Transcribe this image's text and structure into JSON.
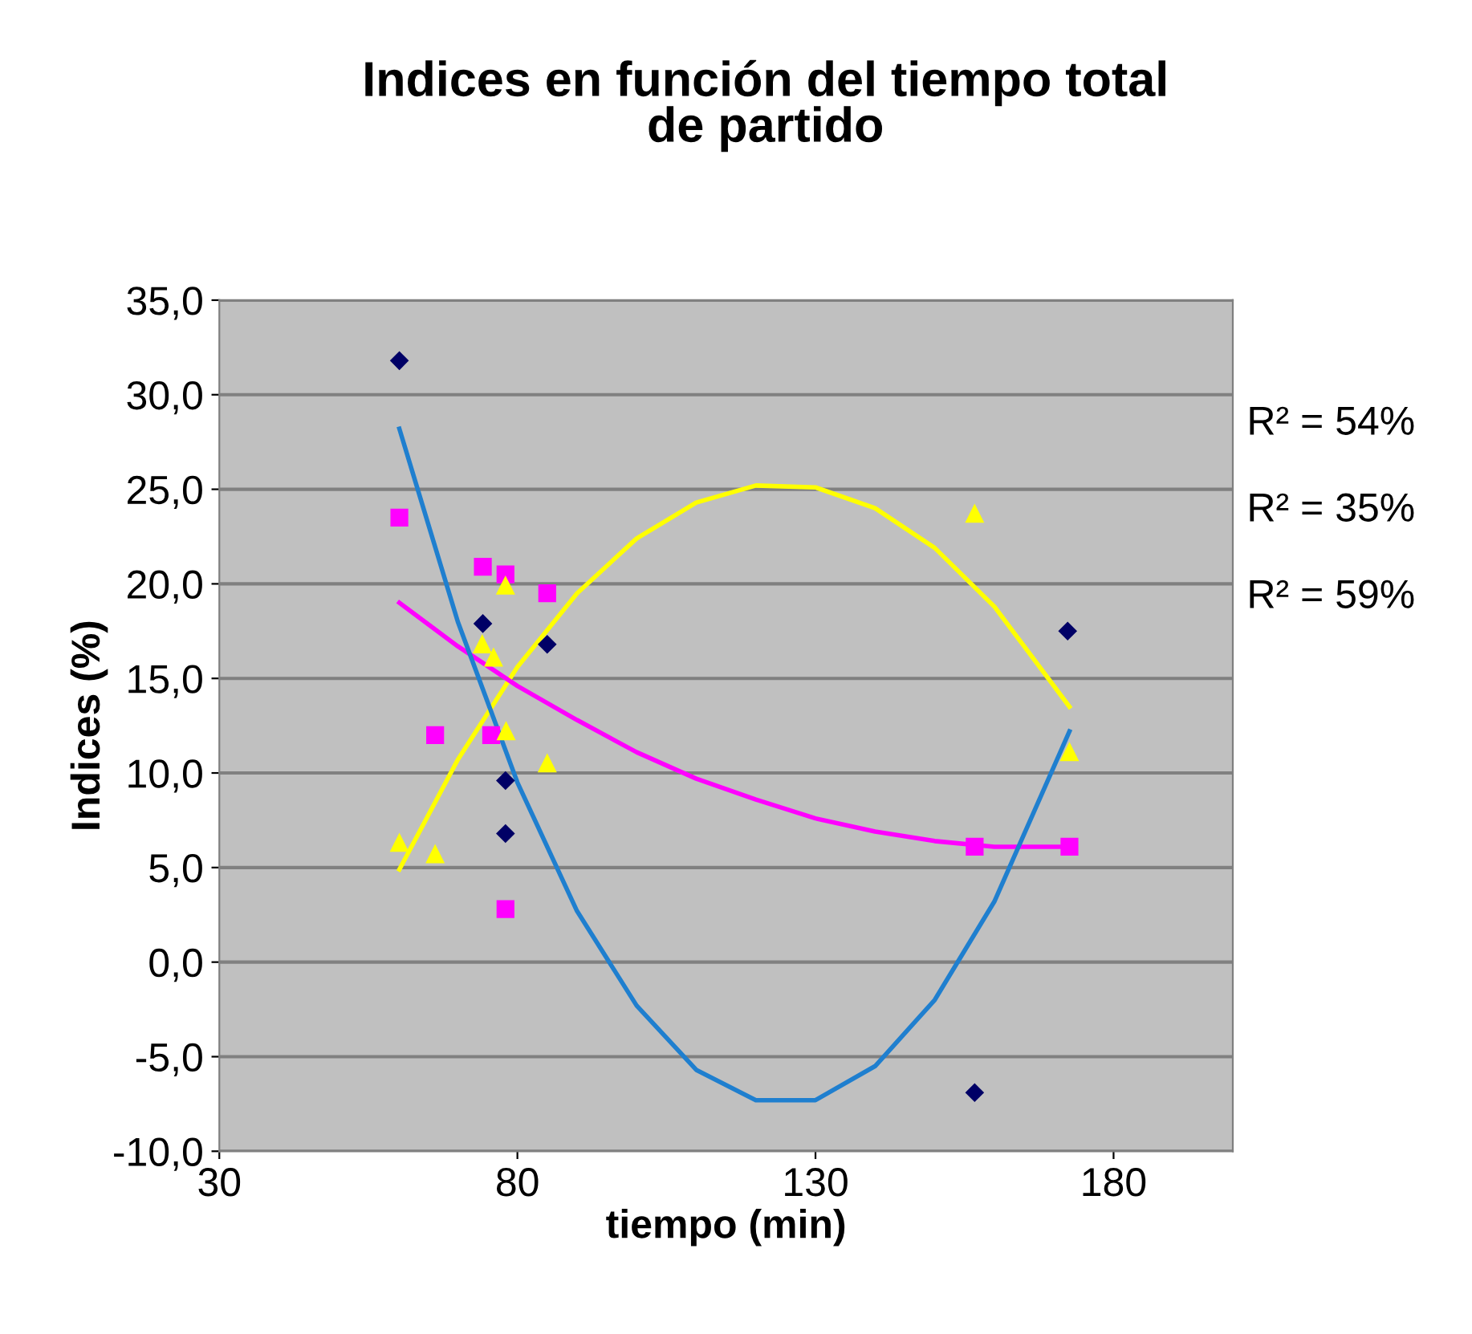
{
  "chart_data": {
    "type": "scatter",
    "title": "Indices en función del tiempo total\nde partido",
    "xlabel": "tiempo (min)",
    "ylabel": "Indices (%)",
    "xlim": [
      30,
      200
    ],
    "xticks": [
      30,
      80,
      130,
      180
    ],
    "ylim": [
      -10,
      35
    ],
    "yticks": [
      {
        "value": -10,
        "label": "-10,0"
      },
      {
        "value": -5,
        "label": "-5,0"
      },
      {
        "value": 0,
        "label": "0,0"
      },
      {
        "value": 5,
        "label": "5,0"
      },
      {
        "value": 10,
        "label": "10,0"
      },
      {
        "value": 15,
        "label": "15,0"
      },
      {
        "value": 20,
        "label": "20,0"
      },
      {
        "value": 25,
        "label": "25,0"
      },
      {
        "value": 30,
        "label": "30,0"
      },
      {
        "value": 35,
        "label": "35,0"
      }
    ],
    "grid": "y",
    "legend": false,
    "series": [
      {
        "marker": "diamond",
        "color": "#000066",
        "x": [
          60.2,
          74.2,
          85.0,
          78.0,
          78.0,
          156.7,
          172.3
        ],
        "values": [
          31.8,
          17.9,
          16.8,
          9.6,
          6.8,
          -6.9,
          17.5
        ]
      },
      {
        "marker": "square",
        "color": "#ff00ff",
        "x": [
          60.2,
          74.2,
          78.0,
          85.0,
          66.2,
          75.6,
          78.0,
          156.7,
          172.6
        ],
        "values": [
          23.5,
          20.9,
          20.5,
          19.5,
          12.0,
          12.0,
          2.8,
          6.1,
          6.1
        ]
      },
      {
        "marker": "triangle",
        "color": "#ffff00",
        "x": [
          78.0,
          74.1,
          76.0,
          78.1,
          85.0,
          60.2,
          66.2,
          156.7,
          172.6
        ],
        "values": [
          19.9,
          16.8,
          16.1,
          12.2,
          10.5,
          6.3,
          5.7,
          23.7,
          11.1
        ]
      },
      {
        "type": "line",
        "marker": "none",
        "color": "#ffff00",
        "x": [
          60.2,
          70,
          80,
          90,
          100,
          110,
          120,
          130,
          140,
          150,
          160,
          172.6
        ],
        "values": [
          4.9,
          10.7,
          15.6,
          19.5,
          22.4,
          24.3,
          25.2,
          25.1,
          24.0,
          21.9,
          18.8,
          13.5
        ]
      },
      {
        "type": "line",
        "marker": "none",
        "color": "#ff00ff",
        "x": [
          60.2,
          70,
          80,
          90,
          100,
          110,
          120,
          130,
          140,
          150,
          160,
          172.6
        ],
        "values": [
          19.0,
          16.7,
          14.6,
          12.8,
          11.1,
          9.7,
          8.6,
          7.6,
          6.9,
          6.4,
          6.1,
          6.1
        ]
      },
      {
        "type": "line",
        "marker": "none",
        "color": "#1f7fcf",
        "x": [
          60.2,
          70,
          80,
          90,
          100,
          110,
          120,
          130,
          140,
          150,
          160,
          172.6
        ],
        "values": [
          28.2,
          18.0,
          9.5,
          2.7,
          -2.3,
          -5.7,
          -7.3,
          -7.3,
          -5.5,
          -2.0,
          3.2,
          12.2
        ]
      }
    ],
    "annotations": [
      "R² = 54%",
      "R² = 35%",
      "R² = 59%"
    ]
  }
}
